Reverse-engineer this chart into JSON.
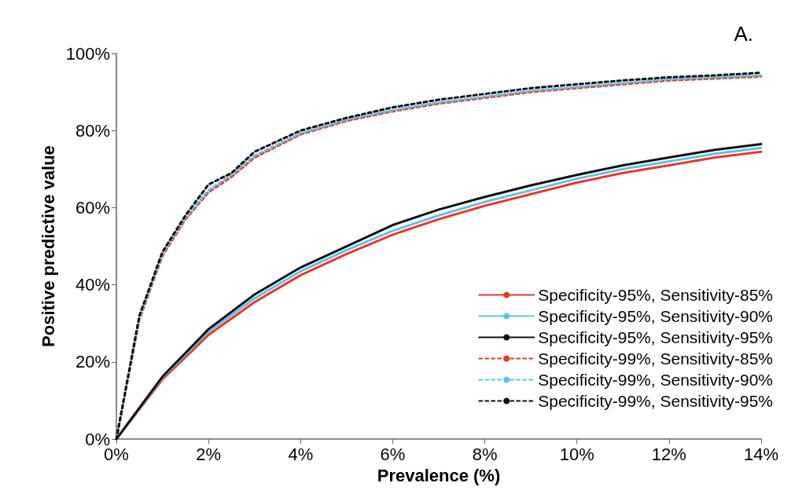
{
  "chart_data": {
    "type": "line",
    "xlabel": "Prevalence (%)",
    "ylabel": "Positive predictive value",
    "annotations": [
      "A."
    ],
    "xlim": [
      0,
      14
    ],
    "xticks": [
      {
        "value": 0,
        "label": "0%"
      },
      {
        "value": 2,
        "label": "2%"
      },
      {
        "value": 4,
        "label": "4%"
      },
      {
        "value": 6,
        "label": "6%"
      },
      {
        "value": 8,
        "label": "8%"
      },
      {
        "value": 10,
        "label": "10%"
      },
      {
        "value": 12,
        "label": "12%"
      },
      {
        "value": 14,
        "label": "14%"
      }
    ],
    "ylim": [
      0,
      100
    ],
    "yticks": [
      {
        "value": 0,
        "label": "0%"
      },
      {
        "value": 20,
        "label": "20%"
      },
      {
        "value": 40,
        "label": "40%"
      },
      {
        "value": 60,
        "label": "60%"
      },
      {
        "value": 80,
        "label": "80%"
      },
      {
        "value": 100,
        "label": "100%"
      }
    ],
    "grid": false,
    "legend": "bottom right",
    "marker": "none",
    "x": [
      0,
      1,
      2,
      3,
      4,
      5,
      6,
      7,
      8,
      9,
      10,
      11,
      12,
      13,
      14
    ],
    "series": [
      {
        "name": "Specificity-95%, Sensitivity-85%",
        "color": "#e8382c",
        "line_style": "solid",
        "values": [
          0,
          15.5,
          27,
          35.5,
          42.5,
          48,
          53,
          57,
          60.5,
          63.5,
          66.5,
          69,
          71,
          73,
          74.5
        ]
      },
      {
        "name": "Specificity-95%, Sensitivity-90%",
        "color": "#5bc4e8",
        "line_style": "solid",
        "values": [
          0,
          16,
          27.8,
          36.5,
          43.5,
          49,
          54,
          58,
          61.5,
          64.5,
          67.5,
          70,
          72,
          74,
          75.5
        ]
      },
      {
        "name": "Specificity-95%, Sensitivity-95%",
        "color": "#111111",
        "line_style": "solid",
        "values": [
          0,
          16.2,
          28.5,
          37.5,
          44.5,
          50,
          55.5,
          59.5,
          62.8,
          65.8,
          68.5,
          71,
          73,
          75,
          76.5
        ]
      },
      {
        "name": "Specificity-99%, Sensitivity-85%",
        "color": "#e8382c",
        "line_style": "dashed",
        "x": [
          0,
          0.5,
          1,
          1.5,
          2,
          2.5,
          3,
          4,
          5,
          6,
          7,
          8,
          9,
          10,
          11,
          12,
          13,
          14
        ],
        "values": [
          0,
          31,
          47.5,
          57,
          64,
          68,
          73,
          79,
          82.5,
          85,
          87,
          88.5,
          90,
          91,
          92,
          93,
          93.5,
          94
        ]
      },
      {
        "name": "Specificity-99%, Sensitivity-90%",
        "color": "#5bc4e8",
        "line_style": "dashed",
        "x": [
          0,
          0.5,
          1,
          1.5,
          2,
          2.5,
          3,
          4,
          5,
          6,
          7,
          8,
          9,
          10,
          11,
          12,
          13,
          14
        ],
        "values": [
          0,
          31.5,
          48,
          57.5,
          64.5,
          68.5,
          73.5,
          79.3,
          82.8,
          85.3,
          87.3,
          88.8,
          90.3,
          91.3,
          92.3,
          93.3,
          93.8,
          94.3
        ]
      },
      {
        "name": "Specificity-99%, Sensitivity-95%",
        "color": "#111111",
        "line_style": "dashed",
        "x": [
          0,
          0.5,
          1,
          1.5,
          2,
          2.5,
          3,
          4,
          5,
          6,
          7,
          8,
          9,
          10,
          11,
          12,
          13,
          14
        ],
        "values": [
          0,
          32,
          48.5,
          58,
          66,
          69,
          74.5,
          80,
          83.3,
          86,
          88,
          89.5,
          91,
          92,
          93,
          93.8,
          94.3,
          95
        ]
      }
    ]
  }
}
